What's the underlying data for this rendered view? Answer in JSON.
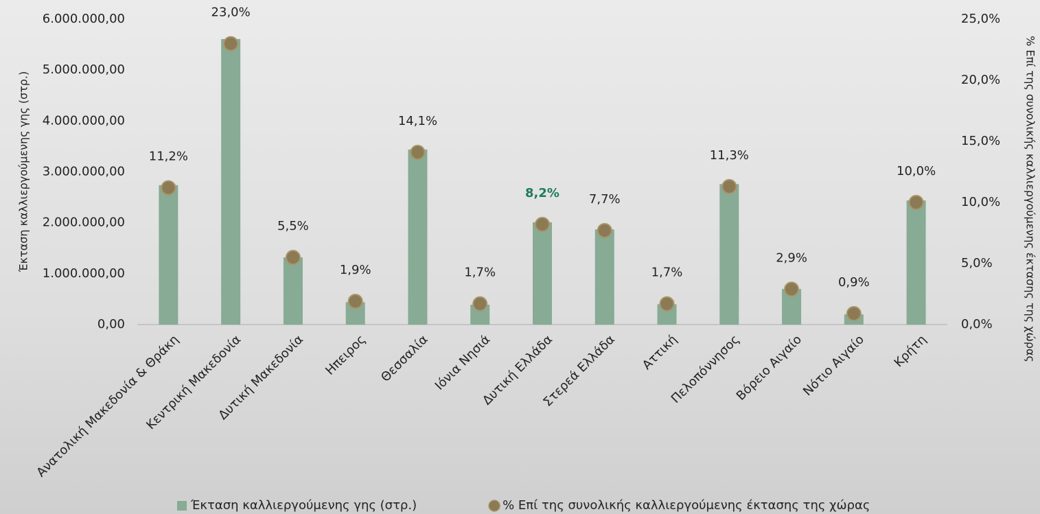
{
  "chart_data": {
    "type": "bar",
    "y_label": "Έκταση καλλιεργούμενης γης (στρ.)",
    "y2_label": "% Επί της συνολικής καλλιεργούμενης έκτασης της χώρας",
    "categories": [
      "Ανατολική Μακεδονία & Θράκη",
      "Κεντρική Μακεδονία",
      "Δυτική Μακεδονία",
      "Ηπειρος",
      "Θεσσαλία",
      "Ιόνια Νησιά",
      "Δυτική Ελλάδα",
      "Στερεά Ελλάδα",
      "Αττική",
      "Πελοπόννησος",
      "Βόρειο Αιγαίο",
      "Νότιο Αιγαίο",
      "Κρήτη"
    ],
    "series": [
      {
        "name": "Έκταση καλλιεργούμενης γης (στρ.)",
        "type": "bar",
        "color": "#87ab94",
        "values": [
          2740000,
          5610000,
          1320000,
          440000,
          3440000,
          390000,
          2010000,
          1870000,
          400000,
          2760000,
          700000,
          200000,
          2440000
        ]
      },
      {
        "name": "% Επί της συνολικής καλλιεργούμενης έκτασης της χώρας",
        "type": "scatter",
        "axis": "y2",
        "color": "#8c7a55",
        "values": [
          11.2,
          23.0,
          5.5,
          1.9,
          14.1,
          1.7,
          8.2,
          7.7,
          1.7,
          11.3,
          2.9,
          0.9,
          10.0
        ],
        "value_labels": [
          "11,2%",
          "23,0%",
          "5,5%",
          "1,9%",
          "14,1%",
          "1,7%",
          "8,2%",
          "7,7%",
          "1,7%",
          "11,3%",
          "2,9%",
          "0,9%",
          "10,0%"
        ],
        "value_label_colors": [
          "#222222",
          "#222222",
          "#222222",
          "#222222",
          "#222222",
          "#222222",
          "#1e7a5c",
          "#222222",
          "#222222",
          "#222222",
          "#222222",
          "#222222",
          "#222222"
        ]
      }
    ],
    "ylim": [
      0,
      6000000
    ],
    "yticks": [
      {
        "value": 0,
        "label": "0,00"
      },
      {
        "value": 1000000,
        "label": "1.000.000,00"
      },
      {
        "value": 2000000,
        "label": "2.000.000,00"
      },
      {
        "value": 3000000,
        "label": "3.000.000,00"
      },
      {
        "value": 4000000,
        "label": "4.000.000,00"
      },
      {
        "value": 5000000,
        "label": "5.000.000,00"
      },
      {
        "value": 6000000,
        "label": "6.000.000,00"
      }
    ],
    "y2lim": [
      0,
      25
    ],
    "y2ticks": [
      {
        "value": 0,
        "label": "0,0%"
      },
      {
        "value": 5,
        "label": "5,0%"
      },
      {
        "value": 10,
        "label": "10,0%"
      },
      {
        "value": 15,
        "label": "15,0%"
      },
      {
        "value": 20,
        "label": "20,0%"
      },
      {
        "value": 25,
        "label": "25,0%"
      }
    ],
    "grid": false
  }
}
